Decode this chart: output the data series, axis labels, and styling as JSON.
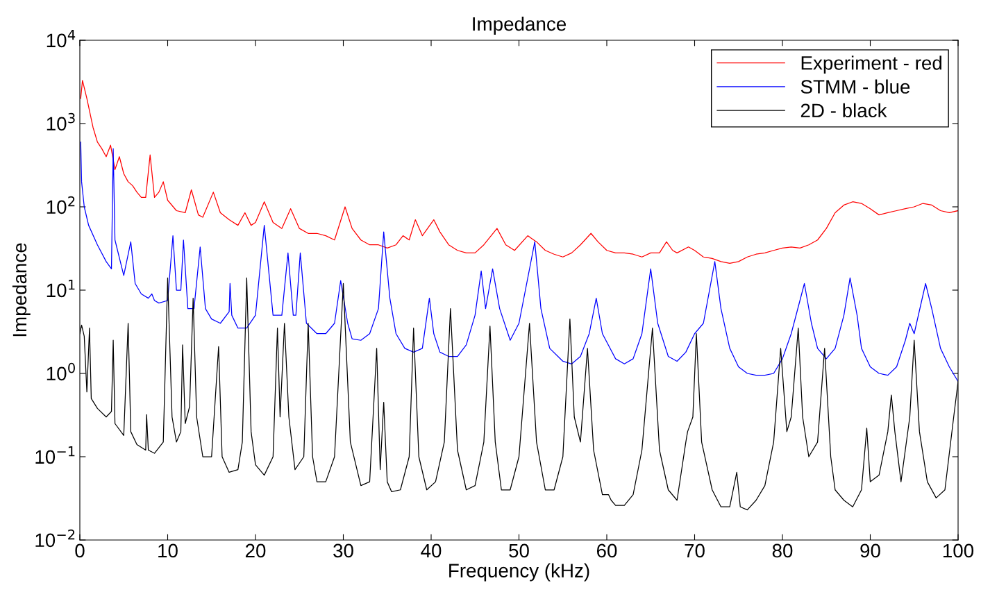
{
  "chart_data": {
    "type": "line",
    "title": "Impedance",
    "xlabel": "Frequency (kHz)",
    "ylabel": "Impedance",
    "log": "y",
    "grid": false,
    "legend": "top right",
    "line_style": "solid",
    "marker": "none",
    "xlim": [
      0,
      100
    ],
    "xticks": [
      0,
      10,
      20,
      30,
      40,
      50,
      60,
      70,
      80,
      90,
      100
    ],
    "ylim": [
      0.01,
      10000
    ],
    "yticks": [
      {
        "value": 0.01,
        "label": "10$^{−2}$"
      },
      {
        "value": 0.1,
        "label": "10$^{−1}$"
      },
      {
        "value": 1,
        "label": "10$^{0}$"
      },
      {
        "value": 10,
        "label": "10$^{1}$"
      },
      {
        "value": 100,
        "label": "10$^{2}$"
      },
      {
        "value": 1000,
        "label": "10$^{3}$"
      },
      {
        "value": 10000,
        "label": "10$^{4}$"
      }
    ],
    "series": [
      {
        "name": "Experiment - red",
        "color": "#ff0000",
        "x": [
          0.1,
          0.3,
          0.8,
          1.5,
          2,
          2.5,
          3,
          3.5,
          4,
          4.5,
          5,
          5.5,
          6,
          6.5,
          7,
          7.5,
          8,
          8.5,
          9,
          9.5,
          10,
          11,
          12,
          12.7,
          13.5,
          14,
          15.2,
          16,
          17,
          18,
          18.8,
          19.5,
          20,
          21,
          22,
          23,
          24,
          25,
          26,
          27,
          28,
          29,
          30.2,
          31,
          32,
          33,
          34,
          35,
          36,
          36.8,
          37.5,
          38.2,
          39,
          40.3,
          41,
          42,
          43,
          44,
          45,
          46,
          47.5,
          48.5,
          49.5,
          51,
          52,
          53,
          54,
          55,
          56,
          57,
          58.2,
          59,
          60,
          61,
          62,
          63,
          64,
          65,
          66,
          66.8,
          67.5,
          68,
          69.3,
          70,
          71,
          72,
          73,
          74,
          75,
          76,
          77,
          78,
          79,
          80,
          81,
          82,
          83,
          84,
          85,
          86,
          87,
          88,
          89,
          90,
          91,
          92,
          93,
          94,
          95,
          96,
          97,
          98,
          99,
          100
        ],
        "values": [
          2000,
          3300,
          2000,
          900,
          600,
          500,
          400,
          550,
          280,
          400,
          250,
          200,
          180,
          150,
          130,
          130,
          420,
          130,
          150,
          200,
          120,
          90,
          85,
          160,
          80,
          75,
          150,
          85,
          70,
          60,
          85,
          60,
          65,
          115,
          65,
          55,
          95,
          55,
          48,
          48,
          45,
          40,
          100,
          55,
          40,
          35,
          35,
          32,
          35,
          45,
          40,
          70,
          45,
          70,
          50,
          35,
          30,
          28,
          28,
          35,
          55,
          35,
          30,
          45,
          38,
          30,
          27,
          25,
          28,
          35,
          48,
          38,
          30,
          28,
          28,
          27,
          25,
          28,
          28,
          38,
          30,
          28,
          33,
          30,
          25,
          24,
          22,
          21,
          22,
          25,
          27,
          28,
          30,
          32,
          33,
          32,
          35,
          40,
          55,
          85,
          105,
          115,
          110,
          95,
          80,
          85,
          90,
          95,
          100,
          110,
          105,
          90,
          85,
          90
        ]
      },
      {
        "name": "STMM - blue",
        "color": "#0000ff",
        "x": [
          0.1,
          0.2,
          0.5,
          1,
          2,
          3,
          3.6,
          3.8,
          4,
          5,
          5.8,
          6.3,
          7,
          7.8,
          8.2,
          8.5,
          9,
          10,
          10.6,
          11,
          11.5,
          11.8,
          12.3,
          13,
          13.7,
          14.3,
          15,
          16,
          17,
          17.1,
          17.3,
          18,
          19,
          20,
          21,
          22,
          23,
          23.7,
          24.3,
          24.6,
          25.1,
          25.8,
          27,
          28,
          29,
          29.7,
          30.5,
          31,
          32,
          33,
          34,
          34.6,
          35.3,
          36,
          37,
          38,
          39,
          39.8,
          40.3,
          41,
          42,
          43,
          44,
          45,
          45.7,
          46.2,
          47,
          47.8,
          49,
          50,
          51.8,
          52.5,
          53.5,
          55,
          56,
          57,
          58,
          58.8,
          59.5,
          61,
          62,
          63,
          64,
          65,
          65.8,
          67,
          68,
          69,
          70,
          71,
          72.3,
          73,
          74,
          75,
          76,
          77,
          78,
          79,
          80,
          81,
          82.5,
          83.3,
          84,
          85,
          86,
          87,
          87.7,
          88.5,
          89,
          90,
          91,
          92,
          93,
          94,
          94.5,
          95,
          96.3,
          97,
          98,
          99,
          100
        ],
        "values": [
          600,
          200,
          100,
          60,
          35,
          22,
          18,
          500,
          40,
          15,
          38,
          12,
          9,
          8,
          9,
          7.5,
          7,
          7.5,
          45,
          10,
          10,
          40,
          6,
          6,
          33,
          6,
          4.5,
          4,
          5.5,
          12,
          5,
          3.5,
          3.5,
          5,
          60,
          5,
          5,
          28,
          5,
          5,
          28,
          4,
          3,
          3,
          4,
          13,
          4,
          2.6,
          2.5,
          3,
          6,
          50,
          8,
          3,
          2,
          1.8,
          2,
          8,
          3,
          1.8,
          1.6,
          1.6,
          2.2,
          5,
          17,
          6,
          18,
          6,
          2.5,
          4,
          38,
          6,
          2,
          1.4,
          1.3,
          1.6,
          3,
          8,
          3,
          1.5,
          1.3,
          1.5,
          3,
          18,
          4,
          1.6,
          1.4,
          1.8,
          3,
          4,
          22,
          6,
          2,
          1.2,
          1,
          0.95,
          0.95,
          1,
          1.5,
          3,
          12,
          4,
          2,
          1.5,
          2,
          5,
          14,
          5,
          2,
          1.2,
          1,
          0.95,
          1.2,
          2.5,
          4,
          3,
          12,
          6,
          2,
          1.2,
          0.8
        ]
      },
      {
        "name": "2D - black",
        "color": "#000000",
        "x": [
          0,
          0.2,
          0.5,
          0.8,
          1.1,
          1.3,
          2,
          3,
          3.6,
          3.8,
          4,
          5,
          5.5,
          5.8,
          6.5,
          7.5,
          7.6,
          7.8,
          8.5,
          9.5,
          10,
          10.5,
          11,
          11.5,
          11.7,
          12,
          12.5,
          12.9,
          13.3,
          14,
          15,
          15.8,
          16.2,
          17,
          18,
          18.5,
          19,
          19.5,
          20,
          21,
          22,
          22.5,
          22.8,
          23.3,
          23.8,
          24.5,
          25.5,
          26,
          26.5,
          27,
          28,
          29,
          30,
          30.8,
          32,
          33,
          33.8,
          34.2,
          34.6,
          35,
          35.5,
          36.5,
          37.5,
          38,
          38.6,
          39.5,
          40.5,
          41.5,
          42.2,
          43,
          44,
          45,
          46,
          46.7,
          47.3,
          48,
          49,
          50,
          51.2,
          52,
          53,
          54,
          55,
          55.8,
          56.3,
          57,
          57.8,
          58.5,
          59.5,
          60.2,
          60.5,
          61,
          62,
          63,
          64,
          65.2,
          66,
          67,
          68,
          69,
          69.2,
          69.8,
          70.2,
          70.8,
          72,
          73,
          74,
          74.8,
          75.2,
          76,
          77,
          78,
          79,
          79.8,
          80.5,
          81,
          81.8,
          82.3,
          83,
          84,
          84.8,
          85.5,
          86,
          87,
          88,
          89,
          89.6,
          90,
          91,
          92,
          92.4,
          92.8,
          93.5,
          94.5,
          95,
          95.6,
          96.5,
          97.5,
          98.5,
          99.5,
          100
        ],
        "values": [
          3,
          3.8,
          2.8,
          0.6,
          3.5,
          0.5,
          0.38,
          0.3,
          0.35,
          2.5,
          0.25,
          0.18,
          4,
          0.2,
          0.14,
          0.12,
          0.32,
          0.12,
          0.11,
          0.15,
          14,
          0.3,
          0.15,
          0.2,
          2.2,
          0.25,
          0.4,
          8,
          0.3,
          0.1,
          0.1,
          2.1,
          0.1,
          0.065,
          0.07,
          0.15,
          14,
          0.2,
          0.08,
          0.06,
          0.1,
          3.5,
          0.3,
          4,
          0.3,
          0.07,
          0.1,
          4,
          0.1,
          0.05,
          0.05,
          0.1,
          12,
          0.15,
          0.045,
          0.05,
          2,
          0.07,
          0.45,
          0.05,
          0.038,
          0.04,
          0.1,
          3.5,
          0.1,
          0.04,
          0.05,
          0.15,
          6,
          0.12,
          0.04,
          0.045,
          0.15,
          3.7,
          0.15,
          0.04,
          0.04,
          0.1,
          4,
          0.15,
          0.04,
          0.04,
          0.1,
          4.5,
          0.3,
          0.15,
          2,
          0.12,
          0.035,
          0.035,
          0.03,
          0.026,
          0.026,
          0.035,
          0.12,
          3.5,
          0.12,
          0.04,
          0.03,
          0.15,
          0.2,
          0.3,
          3,
          0.15,
          0.04,
          0.025,
          0.025,
          0.065,
          0.025,
          0.023,
          0.03,
          0.045,
          0.15,
          2,
          0.2,
          0.3,
          3.5,
          0.3,
          0.1,
          0.15,
          2,
          0.1,
          0.04,
          0.03,
          0.025,
          0.04,
          0.22,
          0.05,
          0.06,
          0.2,
          0.55,
          0.2,
          0.05,
          0.3,
          2.5,
          0.2,
          0.05,
          0.032,
          0.04,
          0.3,
          0.8
        ]
      }
    ]
  }
}
